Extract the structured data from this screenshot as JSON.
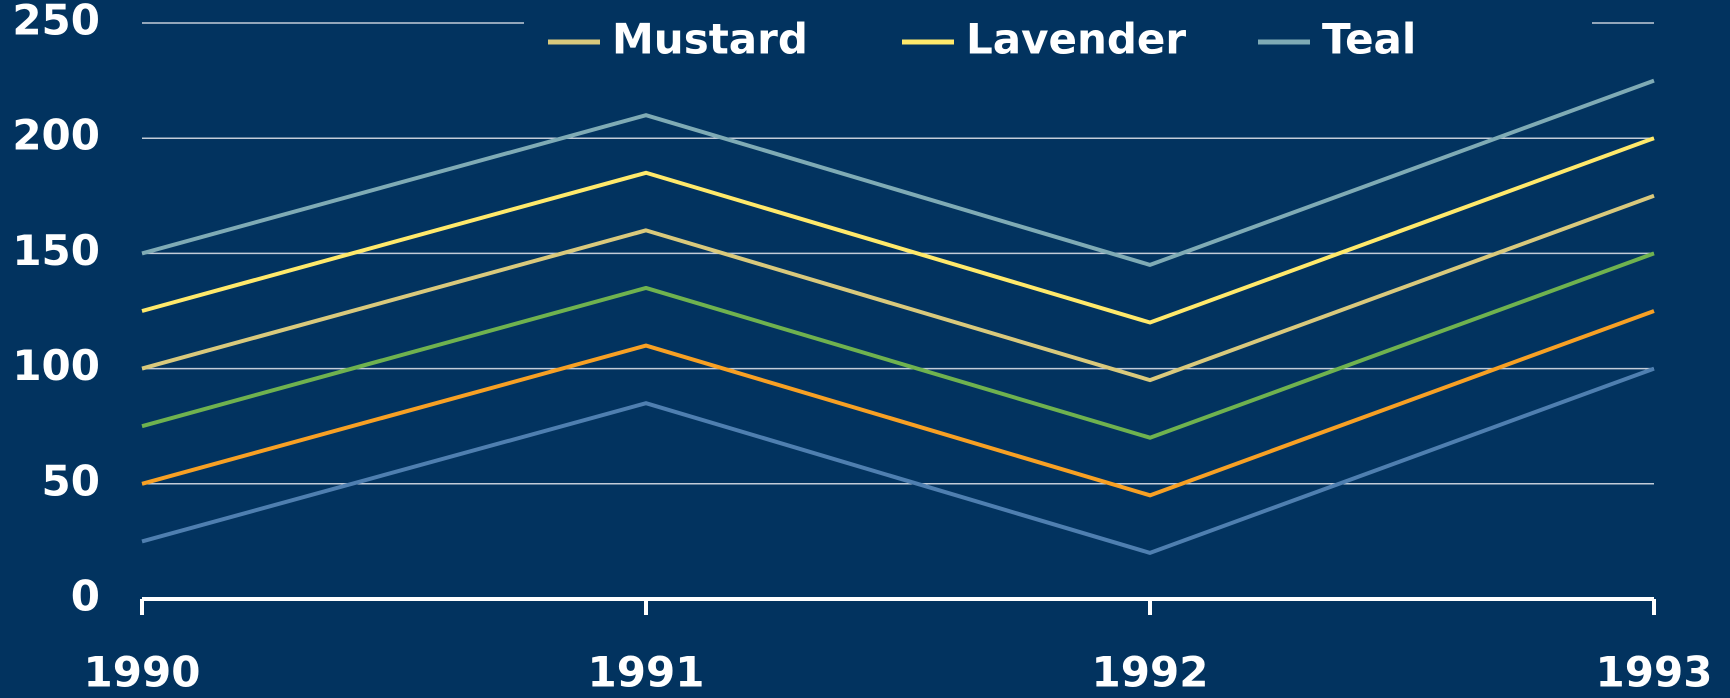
{
  "chart_data": {
    "type": "line",
    "categories": [
      "1990",
      "1991",
      "1992",
      "1993"
    ],
    "series": [
      {
        "name": "Mustard",
        "color": "#d9c97c",
        "values": [
          100,
          160,
          95,
          175
        ]
      },
      {
        "name": "Lavender",
        "color": "#ffe96b",
        "values": [
          125,
          185,
          120,
          200
        ]
      },
      {
        "name": "Teal",
        "color": "#7fabb5",
        "values": [
          150,
          210,
          145,
          225
        ]
      },
      {
        "color": "#6fb24f",
        "values": [
          75,
          135,
          70,
          150
        ]
      },
      {
        "color": "#f7a024",
        "values": [
          50,
          110,
          45,
          125
        ]
      },
      {
        "color": "#4f7fb0",
        "values": [
          25,
          85,
          20,
          100
        ]
      }
    ],
    "ylim": [
      0,
      250
    ],
    "yticks": [
      0,
      50,
      100,
      150,
      200,
      250
    ],
    "grid": true,
    "legend": "top"
  }
}
